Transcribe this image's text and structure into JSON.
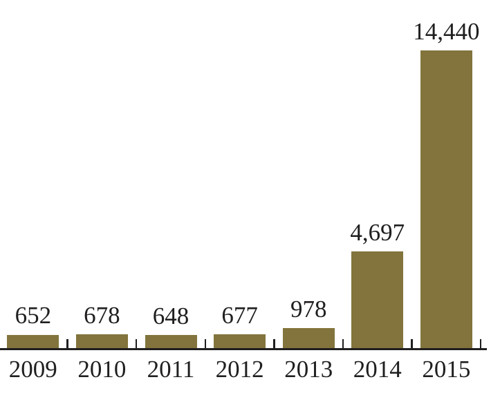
{
  "chart_data": {
    "type": "bar",
    "categories": [
      "2009",
      "2010",
      "2011",
      "2012",
      "2013",
      "2014",
      "2015"
    ],
    "values": [
      652,
      678,
      648,
      677,
      978,
      4697,
      14440
    ],
    "value_labels": [
      "652",
      "678",
      "648",
      "677",
      "978",
      "4,697",
      "14,440"
    ],
    "title": "",
    "xlabel": "",
    "ylabel": "",
    "ylim": [
      0,
      14440
    ],
    "grid": false,
    "legend": false,
    "bar_color": "#82743c",
    "text_color": "#201e1f",
    "axis_color": "#201e1f"
  }
}
